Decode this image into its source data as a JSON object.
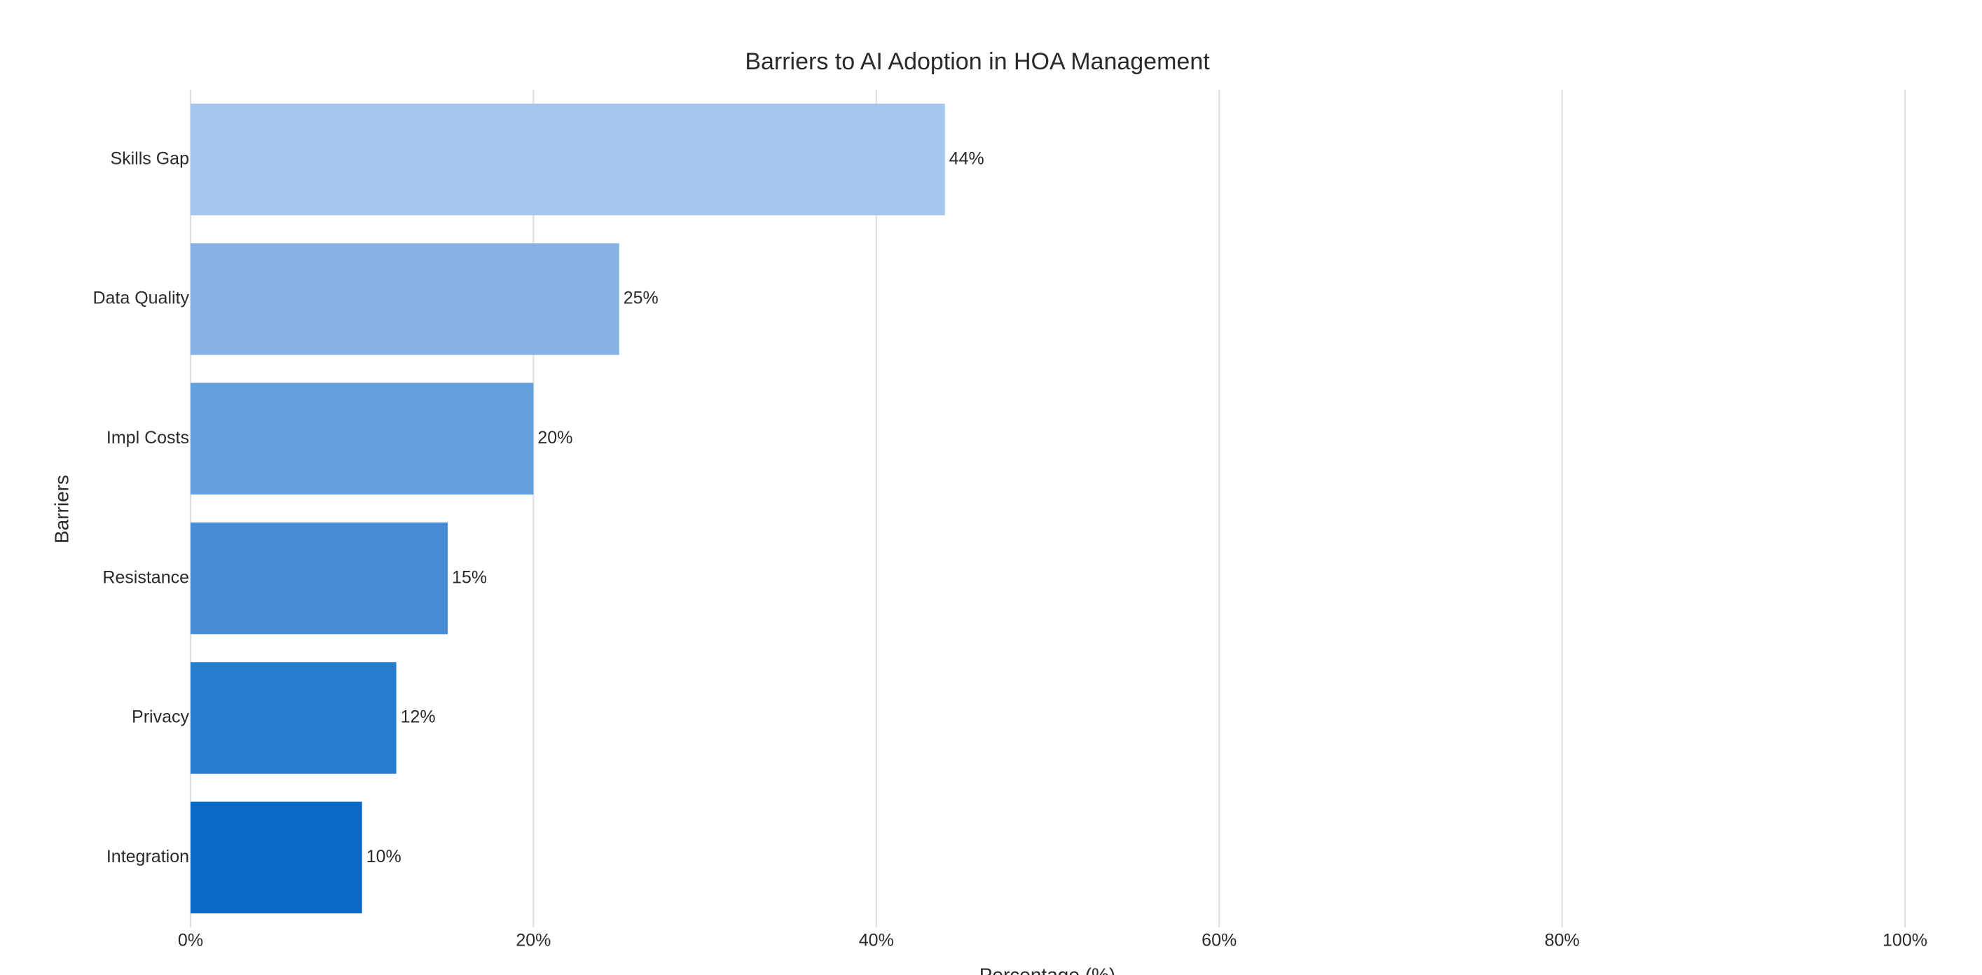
{
  "chart_data": {
    "type": "barh",
    "title": "Barriers to AI Adoption in HOA Management",
    "x_label": "Percentage (%)",
    "y_label": "Barriers",
    "categories": [
      "Skills Gap",
      "Data Quality",
      "Impl Costs",
      "Resistance",
      "Privacy",
      "Integration"
    ],
    "values": [
      44,
      25,
      20,
      15,
      12,
      10
    ],
    "value_labels": [
      "44%",
      "25%",
      "20%",
      "15%",
      "12%",
      "10%"
    ],
    "colors": [
      "#a6c7ec",
      "#87b3e4",
      "#65a0dd",
      "#468dd6",
      "#267dd0",
      "#0a6ac8"
    ],
    "xlim": [
      0,
      100
    ],
    "xticks": [
      {
        "value": 0,
        "label": "0%"
      },
      {
        "value": 20,
        "label": "20%"
      },
      {
        "value": 40,
        "label": "40%"
      },
      {
        "value": 60,
        "label": "60%"
      },
      {
        "value": 80,
        "label": "80%"
      },
      {
        "value": 100,
        "label": "100%"
      }
    ],
    "grid": true
  }
}
